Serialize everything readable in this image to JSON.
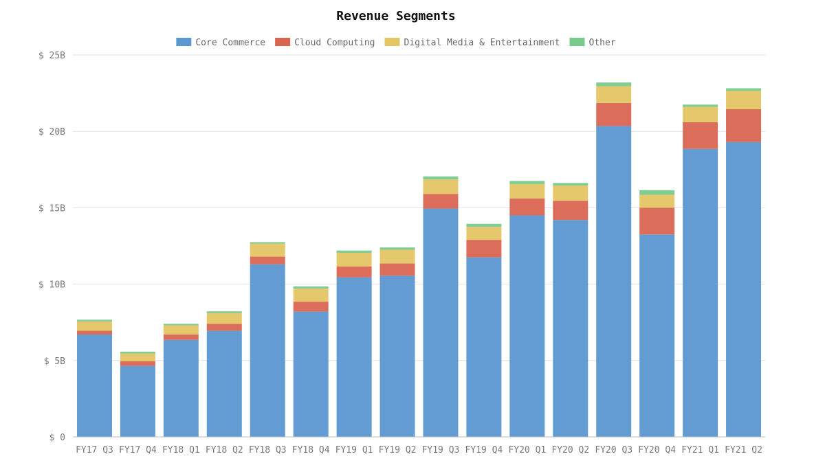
{
  "chart_data": {
    "type": "bar",
    "stacked": true,
    "title": "Revenue Segments",
    "xlabel": "",
    "ylabel": "",
    "ylim": [
      0,
      25
    ],
    "grid": true,
    "legend_position": "top-center",
    "y_ticks": [
      {
        "value": 0,
        "label": "$ 0"
      },
      {
        "value": 5,
        "label": "$ 5B"
      },
      {
        "value": 10,
        "label": "$ 10B"
      },
      {
        "value": 15,
        "label": "$ 15B"
      },
      {
        "value": 20,
        "label": "$ 20B"
      },
      {
        "value": 25,
        "label": "$ 25B"
      }
    ],
    "categories": [
      "FY17 Q3",
      "FY17 Q4",
      "FY18 Q1",
      "FY18 Q2",
      "FY18 Q3",
      "FY18 Q4",
      "FY19 Q1",
      "FY19 Q2",
      "FY19 Q3",
      "FY19 Q4",
      "FY20 Q1",
      "FY20 Q2",
      "FY20 Q3",
      "FY20 Q4",
      "FY21 Q1",
      "FY21 Q2"
    ],
    "series": [
      {
        "name": "Core Commerce",
        "color": "#5b97d1",
        "values": [
          6.7,
          4.65,
          6.35,
          6.95,
          11.3,
          8.2,
          10.45,
          10.55,
          14.95,
          11.75,
          14.5,
          14.2,
          20.35,
          13.25,
          18.85,
          19.3
        ]
      },
      {
        "name": "Cloud Computing",
        "color": "#d96551",
        "values": [
          0.25,
          0.3,
          0.35,
          0.45,
          0.5,
          0.65,
          0.7,
          0.8,
          0.95,
          1.15,
          1.1,
          1.25,
          1.5,
          1.75,
          1.75,
          2.15
        ]
      },
      {
        "name": "Digital Media & Entertainment",
        "color": "#e3c563",
        "values": [
          0.6,
          0.5,
          0.6,
          0.7,
          0.85,
          0.85,
          0.9,
          0.9,
          0.95,
          0.85,
          0.95,
          1.0,
          1.1,
          0.85,
          1.0,
          1.2
        ]
      },
      {
        "name": "Other",
        "color": "#7ac98c",
        "values": [
          0.12,
          0.13,
          0.1,
          0.12,
          0.1,
          0.15,
          0.15,
          0.15,
          0.2,
          0.2,
          0.2,
          0.17,
          0.25,
          0.3,
          0.15,
          0.17
        ]
      }
    ]
  }
}
